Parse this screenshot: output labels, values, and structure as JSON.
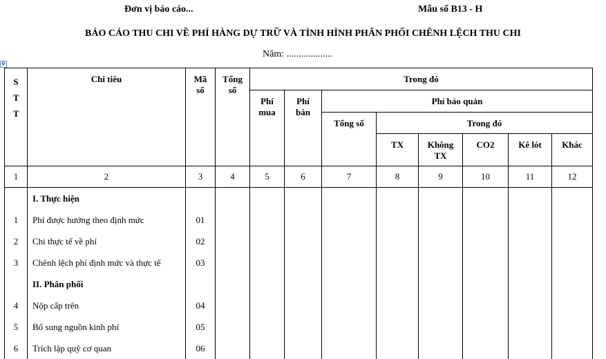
{
  "header": {
    "unit": "Đơn vị báo cáo...",
    "form_no": "Mẫu số B13 - H",
    "title": "BÁO CÁO THU CHI VỀ PHÍ HÀNG DỰ TRỮ VÀ TÌNH HÌNH PHÂN PHỐI CHÊNH LỆCH THU CHI",
    "year": "Năm: ..................."
  },
  "table": {
    "headers": {
      "stt": "S T T",
      "chi_tieu": "Chi tiêu",
      "ma_so": "Mã số",
      "tong_so": "Tổng số",
      "trong_do": "Trong đó",
      "phi_mua": "Phí mua",
      "phi_ban": "Phí bán",
      "phi_bao_quan": "Phí bảo quản",
      "bq_tong_so": "Tổng số",
      "bq_trong_do": "Trong đó",
      "tx": "TX",
      "khong_tx": "Không TX",
      "co2": "CO2",
      "ke_lot": "Kê lót",
      "khac": "Khác"
    },
    "column_numbers": [
      "1",
      "2",
      "3",
      "4",
      "5",
      "6",
      "7",
      "8",
      "9",
      "10",
      "11",
      "12"
    ],
    "rows": [
      {
        "stt": "",
        "label": "I. Thực hiện",
        "code": "",
        "section": true
      },
      {
        "stt": "1",
        "label": "Phí được hưởng theo định mức",
        "code": "01"
      },
      {
        "stt": "2",
        "label": "Chi thực tế về phí",
        "code": "02"
      },
      {
        "stt": "3",
        "label": "Chênh lệch phí định mức và thực tế",
        "code": "03"
      },
      {
        "stt": "",
        "label": "II. Phân phối",
        "code": "",
        "section": true
      },
      {
        "stt": "4",
        "label": "Nộp cấp trên",
        "code": "04"
      },
      {
        "stt": "5",
        "label": "Bổ sung nguồn kinh phí",
        "code": "05"
      },
      {
        "stt": "6",
        "label": "Trích lập quỹ cơ quan",
        "code": "06"
      }
    ]
  }
}
